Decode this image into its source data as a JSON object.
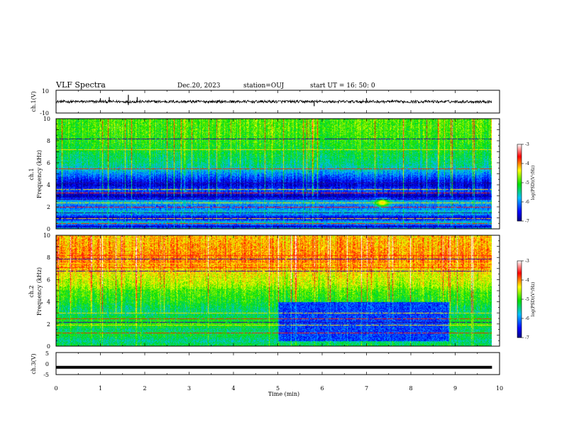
{
  "header": {
    "title": "VLF Spectra",
    "date": "Dec.20, 2023",
    "station": "station=OUJ",
    "start": "start UT =  16: 50: 0"
  },
  "chart_data": [
    {
      "type": "line",
      "panel": "ch1-waveform",
      "ylabel": "ch.1(V)",
      "ylim": [
        -10,
        10
      ],
      "y_ticks": [
        "10",
        "-10"
      ],
      "x_range_min": [
        0,
        9.83
      ],
      "baseline_v": 0,
      "typical_amplitude_v": 2,
      "spikes": [
        {
          "t": 1.0,
          "v": 3
        },
        {
          "t": 1.2,
          "v": 4
        },
        {
          "t": 1.63,
          "v": -3
        },
        {
          "t": 1.63,
          "v": 6
        },
        {
          "t": 1.83,
          "v": 4
        },
        {
          "t": 5.82,
          "v": -4
        },
        {
          "t": 7.0,
          "v": 3
        }
      ]
    },
    {
      "type": "heatmap",
      "panel": "ch1-spectrogram",
      "ylabel": "ch.1 Frequency (kHz)",
      "ylim": [
        0,
        10
      ],
      "y_ticks": [
        "0",
        "2",
        "4",
        "6",
        "8",
        "10"
      ],
      "x_range_min": [
        0,
        9.83
      ],
      "colorbar_label": "log(PSD)(V²/Hz)",
      "colorbar_range": [
        -7,
        -3
      ],
      "colorbar_ticks": [
        "-3",
        "-4",
        "-5",
        "-6",
        "-7"
      ],
      "freq_profile_log_psd": [
        [
          0.0,
          -5.0
        ],
        [
          0.2,
          -6.8
        ],
        [
          0.6,
          -5.6
        ],
        [
          1.0,
          -6.8
        ],
        [
          1.5,
          -5.6
        ],
        [
          2.0,
          -6.2
        ],
        [
          2.5,
          -5.7
        ],
        [
          3.0,
          -6.9
        ],
        [
          3.5,
          -6.2
        ],
        [
          4.0,
          -6.7
        ],
        [
          4.5,
          -6.4
        ],
        [
          5.0,
          -6.0
        ],
        [
          5.5,
          -5.6
        ],
        [
          6.0,
          -5.4
        ],
        [
          7.0,
          -5.2
        ],
        [
          8.0,
          -5.0
        ],
        [
          9.0,
          -4.9
        ],
        [
          10.0,
          -4.9
        ]
      ],
      "lines_khz": [
        0.5,
        1.0,
        1.5,
        2.0,
        2.4,
        2.7,
        3.3,
        3.6,
        4.2,
        5.5,
        7.2,
        8.2
      ],
      "blob": {
        "t": 7.35,
        "f": 2.4,
        "log_psd": -4.2
      }
    },
    {
      "type": "heatmap",
      "panel": "ch2-spectrogram",
      "ylabel": "ch.2 Frequency (kHz)",
      "ylim": [
        0,
        10
      ],
      "y_ticks": [
        "0",
        "2",
        "4",
        "6",
        "8",
        "10"
      ],
      "x_range_min": [
        0,
        9.83
      ],
      "colorbar_label": "log(PSD)(V²/Hz)",
      "colorbar_range": [
        -7,
        -3
      ],
      "colorbar_ticks": [
        "-3",
        "-4",
        "-5",
        "-6",
        "-7"
      ],
      "freq_profile_log_psd": [
        [
          0.0,
          -5.2
        ],
        [
          0.5,
          -5.5
        ],
        [
          1.0,
          -5.2
        ],
        [
          1.5,
          -5.4
        ],
        [
          2.0,
          -5.0
        ],
        [
          2.5,
          -5.2
        ],
        [
          3.0,
          -5.4
        ],
        [
          3.5,
          -5.3
        ],
        [
          4.0,
          -5.1
        ],
        [
          4.5,
          -5.0
        ],
        [
          5.0,
          -4.9
        ],
        [
          5.5,
          -4.6
        ],
        [
          6.0,
          -4.5
        ],
        [
          6.5,
          -4.4
        ],
        [
          7.0,
          -4.2
        ],
        [
          7.5,
          -4.0
        ],
        [
          8.0,
          -4.0
        ],
        [
          9.0,
          -4.1
        ],
        [
          10.0,
          -4.2
        ]
      ],
      "lines_khz": [
        1.2,
        1.9,
        2.2,
        2.5,
        3.0,
        6.8,
        7.1,
        7.5,
        7.9,
        8.2
      ],
      "quiet_region": {
        "t_min": [
          5.0,
          8.85
        ],
        "f_khz": [
          0.5,
          4.0
        ],
        "log_psd": -6.3
      }
    },
    {
      "type": "line",
      "panel": "ch3-waveform",
      "ylabel": "ch.3(V)",
      "xlabel": "Time (min)",
      "ylim": [
        -5,
        5
      ],
      "y_ticks": [
        "5",
        "0",
        "-5"
      ],
      "x_range_min": [
        0,
        9.83
      ],
      "value_v": -1.7,
      "x_ticks": [
        "0",
        "1",
        "2",
        "3",
        "4",
        "5",
        "6",
        "7",
        "8",
        "9",
        "10"
      ]
    }
  ]
}
